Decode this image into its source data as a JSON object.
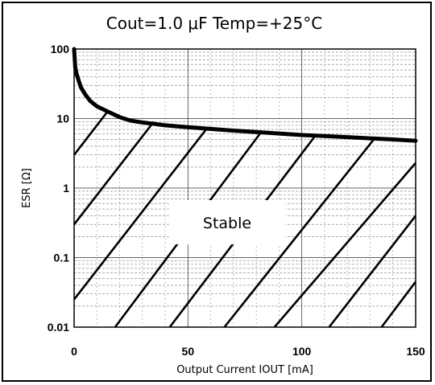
{
  "chart_data": {
    "type": "line",
    "title": "Cout=1.0 μF  Temp=+25°C",
    "xlabel": "Output Current  IOUT  [mA]",
    "ylabel": "ESR [Ω]",
    "xlim": [
      0,
      150
    ],
    "ylim": [
      0.01,
      100
    ],
    "yscale": "log",
    "xticks": [
      "0",
      "50",
      "100",
      "150"
    ],
    "yticks": [
      "0.01",
      "0.1",
      "1",
      "10",
      "100"
    ],
    "grid": true,
    "region_label": "Stable",
    "series": [
      {
        "x": [
          0,
          0.5,
          1,
          2,
          3,
          5,
          7,
          10,
          15,
          20,
          25,
          30,
          40,
          50,
          60,
          70,
          80,
          90,
          100,
          110,
          120,
          130,
          140,
          150
        ],
        "y": [
          100,
          55,
          45,
          35,
          28,
          22,
          18,
          15,
          12.5,
          10.5,
          9.3,
          8.8,
          8.0,
          7.5,
          7.1,
          6.7,
          6.4,
          6.1,
          5.8,
          5.6,
          5.4,
          5.2,
          5.0,
          4.8
        ]
      }
    ],
    "hatch_lines": [
      {
        "x": [
          0,
          15
        ],
        "y": [
          3,
          13
        ]
      },
      {
        "x": [
          0,
          35
        ],
        "y": [
          0.3,
          9
        ]
      },
      {
        "x": [
          0,
          58
        ],
        "y": [
          0.025,
          7
        ]
      },
      {
        "x": [
          18,
          82
        ],
        "y": [
          0.01,
          6.3
        ]
      },
      {
        "x": [
          42,
          106
        ],
        "y": [
          0.01,
          5.7
        ]
      },
      {
        "x": [
          66,
          132
        ],
        "y": [
          0.01,
          5.2
        ]
      },
      {
        "x": [
          88,
          150
        ],
        "y": [
          0.01,
          2.3
        ]
      },
      {
        "x": [
          112,
          150
        ],
        "y": [
          0.01,
          0.4
        ]
      },
      {
        "x": [
          135,
          150
        ],
        "y": [
          0.01,
          0.045
        ]
      }
    ],
    "colors": {
      "line": "#000000",
      "grid": "#7a7a7a",
      "background": "#ffffff"
    }
  }
}
